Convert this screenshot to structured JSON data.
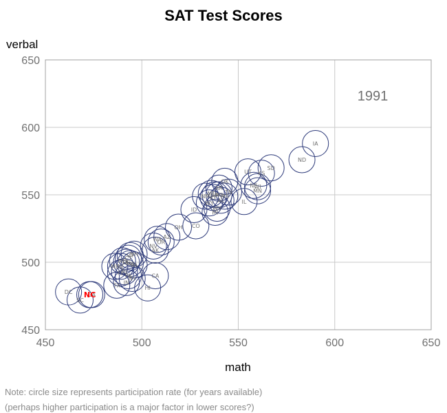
{
  "chart_data": {
    "type": "scatter",
    "title": "SAT Test Scores",
    "xlabel": "math",
    "ylabel": "verbal",
    "xlim": [
      450,
      650
    ],
    "ylim": [
      450,
      650
    ],
    "xticks": [
      "450",
      "500",
      "550",
      "600",
      "650"
    ],
    "yticks": [
      "450",
      "500",
      "550",
      "600",
      "650"
    ],
    "grid": true,
    "annotation": "1991",
    "bubble_color": "#2d3a7a",
    "highlight_color": "#ff0000",
    "points": [
      {
        "label": "IA",
        "x": 590,
        "y": 588
      },
      {
        "label": "ND",
        "x": 583,
        "y": 576
      },
      {
        "label": "SD",
        "x": 567,
        "y": 570
      },
      {
        "label": "UT",
        "x": 555,
        "y": 567
      },
      {
        "label": "KS",
        "x": 562,
        "y": 566
      },
      {
        "label": "WI",
        "x": 560,
        "y": 556
      },
      {
        "label": "MN",
        "x": 560,
        "y": 553
      },
      {
        "label": "NE",
        "x": 558,
        "y": 557
      },
      {
        "label": "IL",
        "x": 553,
        "y": 545
      },
      {
        "label": "OK",
        "x": 543,
        "y": 560
      },
      {
        "label": "AR",
        "x": 540,
        "y": 555
      },
      {
        "label": "TN",
        "x": 545,
        "y": 552
      },
      {
        "label": "MT",
        "x": 536,
        "y": 551
      },
      {
        "label": "MO",
        "x": 540,
        "y": 550
      },
      {
        "label": "NM",
        "x": 533,
        "y": 549
      },
      {
        "label": "KY",
        "x": 537,
        "y": 548
      },
      {
        "label": "MS",
        "x": 543,
        "y": 549
      },
      {
        "label": "LA",
        "x": 538,
        "y": 550
      },
      {
        "label": "WY",
        "x": 535,
        "y": 544
      },
      {
        "label": "AL",
        "x": 541,
        "y": 546
      },
      {
        "label": "MI",
        "x": 538,
        "y": 537
      },
      {
        "label": "WV",
        "x": 539,
        "y": 540
      },
      {
        "label": "ID",
        "x": 527,
        "y": 539
      },
      {
        "label": "CO",
        "x": 528,
        "y": 527
      },
      {
        "label": "OH",
        "x": 519,
        "y": 526
      },
      {
        "label": "AZ",
        "x": 513,
        "y": 519
      },
      {
        "label": "WA",
        "x": 508,
        "y": 517
      },
      {
        "label": "NV",
        "x": 506,
        "y": 512
      },
      {
        "label": "OR",
        "x": 510,
        "y": 515
      },
      {
        "label": "AK",
        "x": 507,
        "y": 509
      },
      {
        "label": "VT",
        "x": 494,
        "y": 505
      },
      {
        "label": "CT",
        "x": 493,
        "y": 503
      },
      {
        "label": "NH",
        "x": 496,
        "y": 506
      },
      {
        "label": "MD",
        "x": 490,
        "y": 501
      },
      {
        "label": "DE",
        "x": 492,
        "y": 500
      },
      {
        "label": "MA",
        "x": 494,
        "y": 499
      },
      {
        "label": "VA",
        "x": 496,
        "y": 498
      },
      {
        "label": "NJ",
        "x": 489,
        "y": 497
      },
      {
        "label": "ME",
        "x": 486,
        "y": 497
      },
      {
        "label": "RI",
        "x": 491,
        "y": 493
      },
      {
        "label": "PA",
        "x": 493,
        "y": 490
      },
      {
        "label": "FL",
        "x": 489,
        "y": 492
      },
      {
        "label": "IN",
        "x": 492,
        "y": 485
      },
      {
        "label": "NY",
        "x": 495,
        "y": 488
      },
      {
        "label": "TX",
        "x": 487,
        "y": 483
      },
      {
        "label": "HI",
        "x": 503,
        "y": 481
      },
      {
        "label": "CA",
        "x": 507,
        "y": 490
      },
      {
        "label": "DC",
        "x": 462,
        "y": 478
      },
      {
        "label": "GA",
        "x": 474,
        "y": 476
      },
      {
        "label": "SC",
        "x": 468,
        "y": 472
      },
      {
        "label": "NC",
        "x": 473,
        "y": 476,
        "highlight": true
      }
    ]
  },
  "notes": [
    "Note: circle size represents participation rate (for years available)",
    "(perhaps higher participation is a major factor in lower scores?)"
  ]
}
